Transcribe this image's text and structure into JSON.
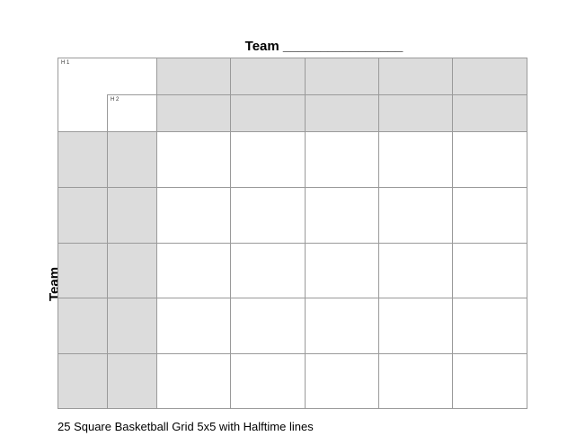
{
  "top_team_label": "Team ________________",
  "side_team_label": "Team ________________",
  "halftime_labels": {
    "h1": "H 1",
    "h2": "H 2"
  },
  "footer": "25 Square Basketball Grid 5x5 with Halftime lines",
  "grid": {
    "columns": 5,
    "rows": 5,
    "header_fill": "#dcdcdc",
    "line_color": "#9a9a9a"
  }
}
